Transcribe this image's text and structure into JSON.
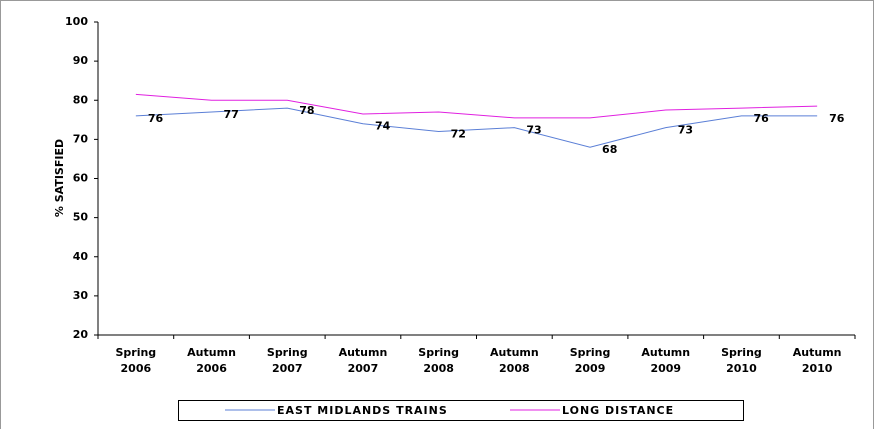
{
  "chart_data": {
    "type": "line",
    "y_label": "% SATISFIED",
    "categories": [
      "Spring 2006",
      "Autumn 2006",
      "Spring 2007",
      "Autumn 2007",
      "Spring 2008",
      "Autumn 2008",
      "Spring 2009",
      "Autumn 2009",
      "Spring 2010",
      "Autumn 2010"
    ],
    "series": [
      {
        "name": "EAST MIDLANDS TRAINS",
        "color": "#5b7fd6",
        "values": [
          76,
          77,
          78,
          74,
          72,
          73,
          68,
          73,
          76,
          76
        ],
        "show_labels": true
      },
      {
        "name": "LONG DISTANCE",
        "color": "#e020e0",
        "values": [
          81.5,
          80,
          80,
          76.5,
          77,
          75.5,
          75.5,
          77.5,
          78,
          78.5
        ],
        "show_labels": false
      }
    ],
    "ylim": [
      20,
      100
    ],
    "yticks": [
      20,
      30,
      40,
      50,
      60,
      70,
      80,
      90,
      100
    ],
    "grid": false,
    "legend": "bottom"
  }
}
